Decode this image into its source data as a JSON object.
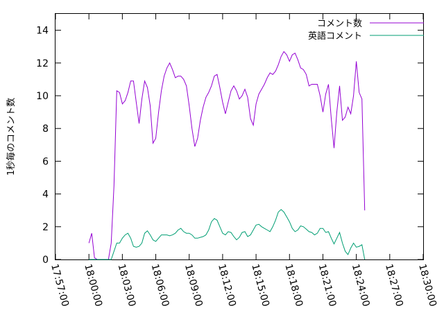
{
  "chart_data": {
    "type": "line",
    "ylabel": "1秒毎のコメント数",
    "ylim": [
      0,
      15
    ],
    "y_ticks": [
      0,
      2,
      4,
      6,
      8,
      10,
      12,
      14
    ],
    "x_ticks": [
      "17:57:00",
      "18:00:00",
      "18:03:00",
      "18:06:00",
      "18:09:00",
      "18:12:00",
      "18:15:00",
      "18:18:00",
      "18:21:00",
      "18:24:00",
      "18:27:00",
      "18:30:00"
    ],
    "legend_position": "top-right",
    "grid": false,
    "x_unit": "minutes since 17:57:00",
    "series": [
      {
        "name": "コメント数",
        "color": "#9400d3",
        "points": [
          [
            3.0,
            1.0
          ],
          [
            3.25,
            1.6
          ],
          [
            3.5,
            0.1
          ],
          [
            3.75,
            0.0
          ],
          [
            4.0,
            0.0
          ],
          [
            4.25,
            0.0
          ],
          [
            4.5,
            0.0
          ],
          [
            4.75,
            0.0
          ],
          [
            5.0,
            1.0
          ],
          [
            5.25,
            4.5
          ],
          [
            5.5,
            10.3
          ],
          [
            5.75,
            10.2
          ],
          [
            6.0,
            9.5
          ],
          [
            6.25,
            9.7
          ],
          [
            6.5,
            10.2
          ],
          [
            6.75,
            10.9
          ],
          [
            7.0,
            10.9
          ],
          [
            7.25,
            9.6
          ],
          [
            7.5,
            8.3
          ],
          [
            7.75,
            9.8
          ],
          [
            8.0,
            10.9
          ],
          [
            8.25,
            10.5
          ],
          [
            8.5,
            9.4
          ],
          [
            8.75,
            7.1
          ],
          [
            9.0,
            7.4
          ],
          [
            9.25,
            9.0
          ],
          [
            9.5,
            10.3
          ],
          [
            9.75,
            11.2
          ],
          [
            10.0,
            11.7
          ],
          [
            10.25,
            12.0
          ],
          [
            10.5,
            11.6
          ],
          [
            10.75,
            11.1
          ],
          [
            11.0,
            11.2
          ],
          [
            11.25,
            11.2
          ],
          [
            11.5,
            11.0
          ],
          [
            11.75,
            10.6
          ],
          [
            12.0,
            9.4
          ],
          [
            12.25,
            8.0
          ],
          [
            12.5,
            6.9
          ],
          [
            12.75,
            7.4
          ],
          [
            13.0,
            8.5
          ],
          [
            13.25,
            9.3
          ],
          [
            13.5,
            9.9
          ],
          [
            13.75,
            10.2
          ],
          [
            14.0,
            10.6
          ],
          [
            14.25,
            11.2
          ],
          [
            14.5,
            11.3
          ],
          [
            14.75,
            10.5
          ],
          [
            15.0,
            9.6
          ],
          [
            15.25,
            8.9
          ],
          [
            15.5,
            9.6
          ],
          [
            15.75,
            10.3
          ],
          [
            16.0,
            10.6
          ],
          [
            16.25,
            10.3
          ],
          [
            16.5,
            9.8
          ],
          [
            16.75,
            10.0
          ],
          [
            17.0,
            10.4
          ],
          [
            17.25,
            9.9
          ],
          [
            17.5,
            8.6
          ],
          [
            17.75,
            8.2
          ],
          [
            18.0,
            9.5
          ],
          [
            18.25,
            10.1
          ],
          [
            18.5,
            10.4
          ],
          [
            18.75,
            10.7
          ],
          [
            19.0,
            11.1
          ],
          [
            19.25,
            11.4
          ],
          [
            19.5,
            11.3
          ],
          [
            19.75,
            11.5
          ],
          [
            20.0,
            11.9
          ],
          [
            20.25,
            12.4
          ],
          [
            20.5,
            12.7
          ],
          [
            20.75,
            12.5
          ],
          [
            21.0,
            12.1
          ],
          [
            21.25,
            12.5
          ],
          [
            21.5,
            12.6
          ],
          [
            21.75,
            12.2
          ],
          [
            22.0,
            11.7
          ],
          [
            22.25,
            11.6
          ],
          [
            22.5,
            11.3
          ],
          [
            22.75,
            10.6
          ],
          [
            23.0,
            10.7
          ],
          [
            23.25,
            10.7
          ],
          [
            23.5,
            10.7
          ],
          [
            23.75,
            10.0
          ],
          [
            24.0,
            9.0
          ],
          [
            24.25,
            10.1
          ],
          [
            24.5,
            10.7
          ],
          [
            24.75,
            8.6
          ],
          [
            25.0,
            6.8
          ],
          [
            25.25,
            9.0
          ],
          [
            25.5,
            10.6
          ],
          [
            25.75,
            8.5
          ],
          [
            26.0,
            8.7
          ],
          [
            26.25,
            9.3
          ],
          [
            26.5,
            8.9
          ],
          [
            26.75,
            10.0
          ],
          [
            27.0,
            12.1
          ],
          [
            27.25,
            10.2
          ],
          [
            27.5,
            9.8
          ],
          [
            27.75,
            3.0
          ]
        ]
      },
      {
        "name": "英語コメント",
        "color": "#009e73",
        "points": [
          [
            3.0,
            0.0
          ],
          [
            3.25,
            0.0
          ],
          [
            3.5,
            0.0
          ],
          [
            3.75,
            0.0
          ],
          [
            4.0,
            0.0
          ],
          [
            4.25,
            0.0
          ],
          [
            4.5,
            0.0
          ],
          [
            4.75,
            0.0
          ],
          [
            5.0,
            0.0
          ],
          [
            5.25,
            0.5
          ],
          [
            5.5,
            1.0
          ],
          [
            5.75,
            1.0
          ],
          [
            6.0,
            1.3
          ],
          [
            6.25,
            1.5
          ],
          [
            6.5,
            1.6
          ],
          [
            6.75,
            1.3
          ],
          [
            7.0,
            0.8
          ],
          [
            7.25,
            0.75
          ],
          [
            7.5,
            0.8
          ],
          [
            7.75,
            1.0
          ],
          [
            8.0,
            1.6
          ],
          [
            8.25,
            1.75
          ],
          [
            8.5,
            1.5
          ],
          [
            8.75,
            1.2
          ],
          [
            9.0,
            1.1
          ],
          [
            9.25,
            1.3
          ],
          [
            9.5,
            1.5
          ],
          [
            9.75,
            1.5
          ],
          [
            10.0,
            1.5
          ],
          [
            10.25,
            1.45
          ],
          [
            10.5,
            1.5
          ],
          [
            10.75,
            1.6
          ],
          [
            11.0,
            1.8
          ],
          [
            11.25,
            1.9
          ],
          [
            11.5,
            1.7
          ],
          [
            11.75,
            1.6
          ],
          [
            12.0,
            1.6
          ],
          [
            12.25,
            1.5
          ],
          [
            12.5,
            1.3
          ],
          [
            12.75,
            1.3
          ],
          [
            13.0,
            1.35
          ],
          [
            13.25,
            1.4
          ],
          [
            13.5,
            1.5
          ],
          [
            13.75,
            1.8
          ],
          [
            14.0,
            2.3
          ],
          [
            14.25,
            2.5
          ],
          [
            14.5,
            2.4
          ],
          [
            14.75,
            2.0
          ],
          [
            15.0,
            1.6
          ],
          [
            15.25,
            1.5
          ],
          [
            15.5,
            1.7
          ],
          [
            15.75,
            1.65
          ],
          [
            16.0,
            1.4
          ],
          [
            16.25,
            1.2
          ],
          [
            16.5,
            1.35
          ],
          [
            16.75,
            1.65
          ],
          [
            17.0,
            1.7
          ],
          [
            17.25,
            1.4
          ],
          [
            17.5,
            1.5
          ],
          [
            17.75,
            1.8
          ],
          [
            18.0,
            2.1
          ],
          [
            18.25,
            2.15
          ],
          [
            18.5,
            2.0
          ],
          [
            18.75,
            1.9
          ],
          [
            19.0,
            1.8
          ],
          [
            19.25,
            1.7
          ],
          [
            19.5,
            2.0
          ],
          [
            19.75,
            2.4
          ],
          [
            20.0,
            2.9
          ],
          [
            20.25,
            3.05
          ],
          [
            20.5,
            2.9
          ],
          [
            20.75,
            2.6
          ],
          [
            21.0,
            2.3
          ],
          [
            21.25,
            1.9
          ],
          [
            21.5,
            1.7
          ],
          [
            21.75,
            1.8
          ],
          [
            22.0,
            2.05
          ],
          [
            22.25,
            2.0
          ],
          [
            22.5,
            1.85
          ],
          [
            22.75,
            1.7
          ],
          [
            23.0,
            1.65
          ],
          [
            23.25,
            1.5
          ],
          [
            23.5,
            1.6
          ],
          [
            23.75,
            1.9
          ],
          [
            24.0,
            1.9
          ],
          [
            24.25,
            1.65
          ],
          [
            24.5,
            1.7
          ],
          [
            24.75,
            1.3
          ],
          [
            25.0,
            0.95
          ],
          [
            25.25,
            1.3
          ],
          [
            25.5,
            1.65
          ],
          [
            25.75,
            1.0
          ],
          [
            26.0,
            0.5
          ],
          [
            26.25,
            0.3
          ],
          [
            26.5,
            0.7
          ],
          [
            26.75,
            1.0
          ],
          [
            27.0,
            0.75
          ],
          [
            27.25,
            0.8
          ],
          [
            27.5,
            0.9
          ],
          [
            27.75,
            0.0
          ]
        ]
      }
    ]
  }
}
